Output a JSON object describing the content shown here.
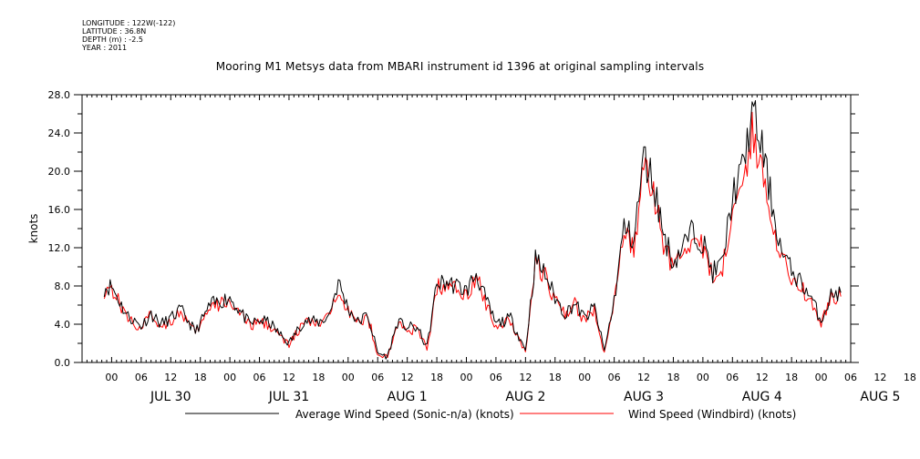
{
  "metadata": {
    "longitude": "LONGITUDE : 122W(-122)",
    "latitude": "LATITUDE : 36.8N",
    "depth": "DEPTH (m) : -2.5",
    "year": "YEAR : 2011"
  },
  "chart_data": {
    "type": "line",
    "title": "Mooring M1 Metsys data from MBARI instrument id 1396 at original sampling intervals",
    "ylabel": "knots",
    "ylim": [
      0,
      28
    ],
    "yticks": [
      "0.0",
      "4.0",
      "8.0",
      "12.0",
      "16.0",
      "20.0",
      "24.0",
      "28.0"
    ],
    "xlim_hours": [
      -6,
      150
    ],
    "hour_ticks": [
      "00",
      "06",
      "12",
      "18",
      "00",
      "06",
      "12",
      "18",
      "00",
      "06",
      "12",
      "18",
      "00",
      "06",
      "12",
      "18",
      "00",
      "06",
      "12",
      "18",
      "00",
      "06",
      "12",
      "18",
      "00",
      "06",
      "12",
      "18"
    ],
    "day_labels": [
      "JUL 30",
      "JUL 31",
      "AUG  1",
      "AUG  2",
      "AUG  3",
      "AUG  4",
      "AUG  5"
    ],
    "x_unit": "hours since 2011-07-30 00:00",
    "grid": false,
    "legend_position": "bottom",
    "series": [
      {
        "name": "Average Wind Speed (Sonic-n/a) (knots)",
        "color": "#000000",
        "x": [
          -1.5,
          0,
          3,
          6,
          8,
          10,
          12,
          14,
          17,
          20,
          24,
          28,
          30,
          32,
          34,
          36,
          39,
          42,
          44,
          46,
          48,
          50,
          52,
          54,
          56,
          58,
          60,
          62,
          64,
          66,
          68,
          70,
          72,
          74,
          76,
          78,
          81,
          84,
          86,
          88,
          90,
          92,
          94,
          96,
          98,
          100,
          102,
          104,
          106,
          108,
          110,
          112,
          114,
          116,
          118,
          120,
          122,
          124,
          126,
          128,
          130,
          132,
          134,
          136,
          138,
          140,
          142,
          144,
          146,
          148
        ],
        "y": [
          7.8,
          8.0,
          5.0,
          3.8,
          5.1,
          4.0,
          4.6,
          5.5,
          3.2,
          6.0,
          6.8,
          4.0,
          4.4,
          4.2,
          3.0,
          2.0,
          4.4,
          4.2,
          4.8,
          8.4,
          5.7,
          4.2,
          5.0,
          1.0,
          0.6,
          4.2,
          3.7,
          3.6,
          1.6,
          8.2,
          8.4,
          8.0,
          7.5,
          9.3,
          6.5,
          4.0,
          4.6,
          1.3,
          10.8,
          9.2,
          6.8,
          5.1,
          6.2,
          4.6,
          5.8,
          1.2,
          6.5,
          14.2,
          12.8,
          21.5,
          18.8,
          13.5,
          10.4,
          12.2,
          13.8,
          12.6,
          9.4,
          10.4,
          17.5,
          20.0,
          26.2,
          22.5,
          16.7,
          11.5,
          9.6,
          8.3,
          6.7,
          4.4,
          7.0,
          7.3
        ]
      },
      {
        "name": "Wind Speed (Windbird) (knots)",
        "color": "#ff0000",
        "x": [
          -1.5,
          0,
          3,
          6,
          8,
          10,
          12,
          14,
          17,
          20,
          24,
          28,
          30,
          32,
          34,
          36,
          39,
          42,
          44,
          46,
          48,
          50,
          52,
          54,
          56,
          58,
          60,
          62,
          64,
          66,
          68,
          70,
          72,
          74,
          76,
          78,
          81,
          84,
          86,
          88,
          90,
          92,
          94,
          96,
          98,
          100,
          102,
          104,
          106,
          108,
          110,
          112,
          114,
          116,
          118,
          120,
          122,
          124,
          126,
          128,
          130,
          132,
          134,
          136,
          138,
          140,
          142,
          144,
          146,
          148
        ],
        "y": [
          7.6,
          7.8,
          4.8,
          3.5,
          5.0,
          3.8,
          4.4,
          5.3,
          3.0,
          5.7,
          6.5,
          3.8,
          4.2,
          4.0,
          2.8,
          1.8,
          4.2,
          4.0,
          4.6,
          8.0,
          5.5,
          4.0,
          4.8,
          0.9,
          0.5,
          4.0,
          3.5,
          3.4,
          1.4,
          7.9,
          8.1,
          7.7,
          7.2,
          8.9,
          6.2,
          3.8,
          4.4,
          1.1,
          10.5,
          8.9,
          6.5,
          4.9,
          6.0,
          4.4,
          5.5,
          1.0,
          6.2,
          13.4,
          12.0,
          20.0,
          17.5,
          12.6,
          9.9,
          11.6,
          13.0,
          11.9,
          8.9,
          9.8,
          16.2,
          18.3,
          23.8,
          20.5,
          15.4,
          10.8,
          9.0,
          7.9,
          6.3,
          4.1,
          6.6,
          6.9
        ]
      }
    ]
  }
}
